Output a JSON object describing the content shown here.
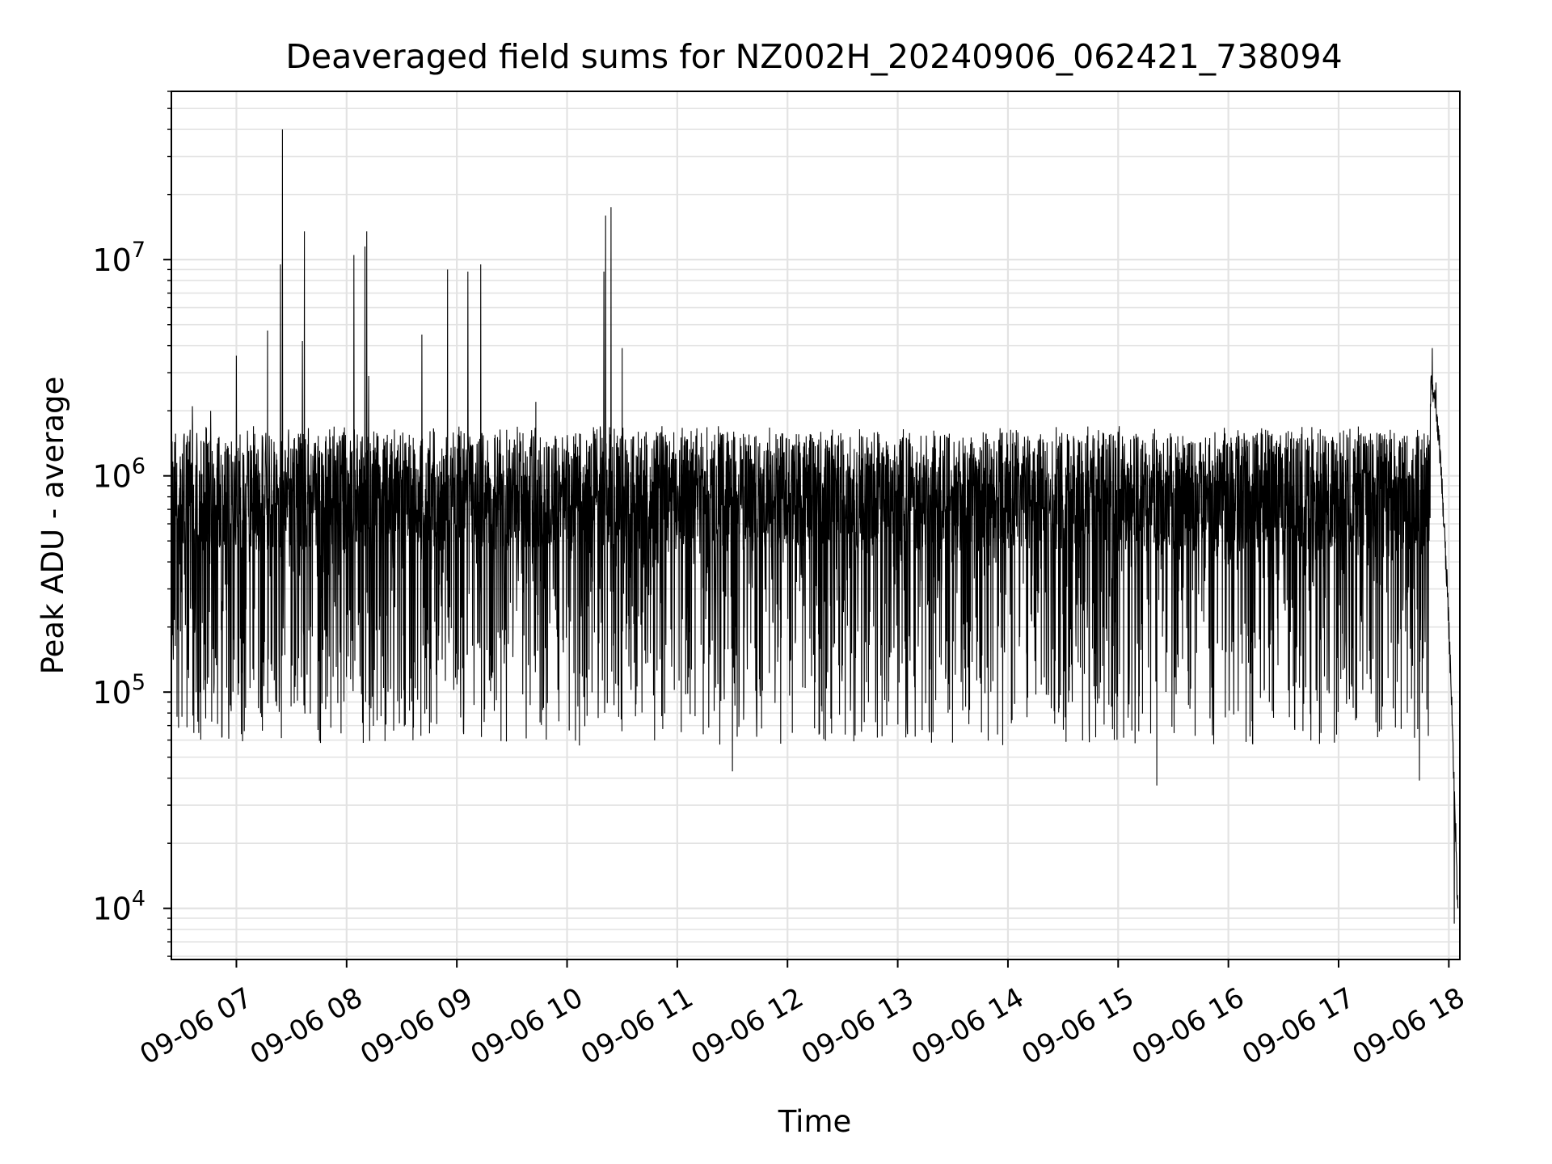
{
  "chart_data": {
    "type": "line",
    "title": "Deaveraged field sums for NZ002H_20240906_062421_738094",
    "xlabel": "Time",
    "ylabel": "Peak ADU - average",
    "yscale": "log",
    "ylim": [
      5800,
      60000000
    ],
    "xlim_hours": [
      6.41,
      18.1
    ],
    "grid": true,
    "x_ticks": [
      {
        "label": "09-06 07",
        "hour": 7
      },
      {
        "label": "09-06 08",
        "hour": 8
      },
      {
        "label": "09-06 09",
        "hour": 9
      },
      {
        "label": "09-06 10",
        "hour": 10
      },
      {
        "label": "09-06 11",
        "hour": 11
      },
      {
        "label": "09-06 12",
        "hour": 12
      },
      {
        "label": "09-06 13",
        "hour": 13
      },
      {
        "label": "09-06 14",
        "hour": 14
      },
      {
        "label": "09-06 15",
        "hour": 15
      },
      {
        "label": "09-06 16",
        "hour": 16
      },
      {
        "label": "09-06 17",
        "hour": 17
      },
      {
        "label": "09-06 18",
        "hour": 18
      }
    ],
    "y_ticks": [
      {
        "base": "10",
        "exp": "4",
        "value": 10000
      },
      {
        "base": "10",
        "exp": "5",
        "value": 100000
      },
      {
        "base": "10",
        "exp": "6",
        "value": 1000000
      },
      {
        "base": "10",
        "exp": "7",
        "value": 10000000
      }
    ],
    "series": [
      {
        "color": "#000000",
        "baseline_typical": 700000,
        "baseline_range": [
          40000,
          1700000
        ],
        "x_time_range": [
          "09-06 06:25",
          "09-06 18:05"
        ],
        "peaks": [
          {
            "x": "09-06 06:36",
            "y": 2100000
          },
          {
            "x": "09-06 06:46",
            "y": 2000000
          },
          {
            "x": "09-06 07:00",
            "y": 3600000
          },
          {
            "x": "09-06 07:17",
            "y": 4700000
          },
          {
            "x": "09-06 07:24",
            "y": 9500000
          },
          {
            "x": "09-06 07:25",
            "y": 40000000
          },
          {
            "x": "09-06 07:36",
            "y": 4200000
          },
          {
            "x": "09-06 07:37",
            "y": 13500000
          },
          {
            "x": "09-06 08:04",
            "y": 10500000
          },
          {
            "x": "09-06 08:10",
            "y": 11500000
          },
          {
            "x": "09-06 08:11",
            "y": 13500000
          },
          {
            "x": "09-06 08:12",
            "y": 2900000
          },
          {
            "x": "09-06 08:41",
            "y": 4500000
          },
          {
            "x": "09-06 08:55",
            "y": 9000000
          },
          {
            "x": "09-06 09:06",
            "y": 8800000
          },
          {
            "x": "09-06 09:13",
            "y": 9500000
          },
          {
            "x": "09-06 09:43",
            "y": 2200000
          },
          {
            "x": "09-06 10:20",
            "y": 8800000
          },
          {
            "x": "09-06 10:21",
            "y": 16000000
          },
          {
            "x": "09-06 10:24",
            "y": 17500000
          },
          {
            "x": "09-06 10:30",
            "y": 3900000
          },
          {
            "x": "09-06 17:51",
            "y": 3900000
          },
          {
            "x": "09-06 17:53",
            "y": 2700000
          }
        ],
        "dips": [
          {
            "x": "09-06 06:38",
            "y": 100000
          },
          {
            "x": "09-06 11:30",
            "y": 43000
          },
          {
            "x": "09-06 15:21",
            "y": 37000
          },
          {
            "x": "09-06 17:44",
            "y": 39000
          },
          {
            "x": "09-06 18:03",
            "y": 8500
          }
        ]
      }
    ]
  }
}
